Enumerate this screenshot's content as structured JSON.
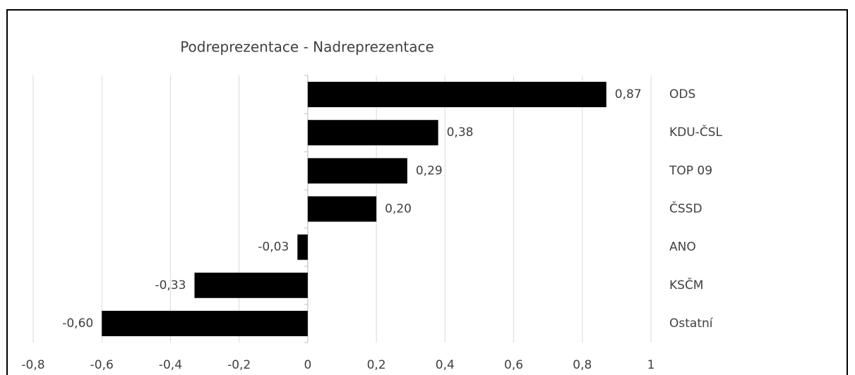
{
  "chart_data": {
    "type": "bar",
    "orientation": "horizontal",
    "title": "Podreprezentace - Nadreprezentace",
    "categories": [
      "ODS",
      "KDU-ČSL",
      "TOP 09",
      "ČSSD",
      "ANO",
      "KSČM",
      "Ostatní"
    ],
    "values": [
      0.87,
      0.38,
      0.29,
      0.2,
      -0.03,
      -0.33,
      -0.6
    ],
    "value_labels": [
      "0,87",
      "0,38",
      "0,29",
      "0,20",
      "-0,03",
      "-0,33",
      "-0,60"
    ],
    "color": "#000000",
    "xlim": [
      -0.8,
      1
    ],
    "xticks": [
      {
        "value": -0.8,
        "label": "-0,8"
      },
      {
        "value": -0.6,
        "label": "-0,6"
      },
      {
        "value": -0.4,
        "label": "-0,4"
      },
      {
        "value": -0.2,
        "label": "-0,2"
      },
      0,
      {
        "value": 0.2,
        "label": "0,2"
      },
      {
        "value": 0.4,
        "label": "0,4"
      },
      {
        "value": 0.6,
        "label": "0,6"
      },
      {
        "value": 0.8,
        "label": "0,8"
      },
      1
    ],
    "grid": true
  }
}
